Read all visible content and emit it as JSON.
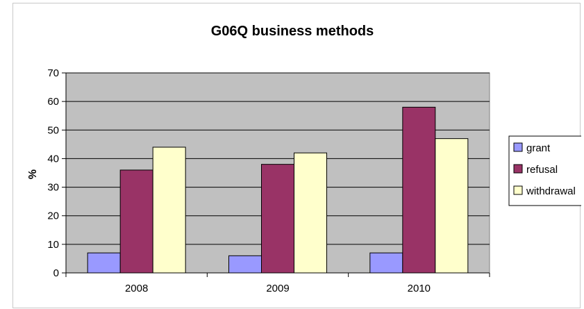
{
  "chart_data": {
    "type": "bar",
    "title": "G06Q business methods",
    "xlabel": "",
    "ylabel": "%",
    "ylim": [
      0,
      70
    ],
    "yticks": [
      0,
      10,
      20,
      30,
      40,
      50,
      60,
      70
    ],
    "categories": [
      "2008",
      "2009",
      "2010"
    ],
    "series": [
      {
        "name": "grant",
        "values": [
          7,
          6,
          7
        ],
        "color": "#9999ff"
      },
      {
        "name": "refusal",
        "values": [
          36,
          38,
          58
        ],
        "color": "#993366"
      },
      {
        "name": "withdrawal",
        "values": [
          44,
          42,
          47
        ],
        "color": "#ffffcc"
      }
    ],
    "plot_background": "#c0c0c0",
    "grid": true,
    "legend_position": "right"
  }
}
